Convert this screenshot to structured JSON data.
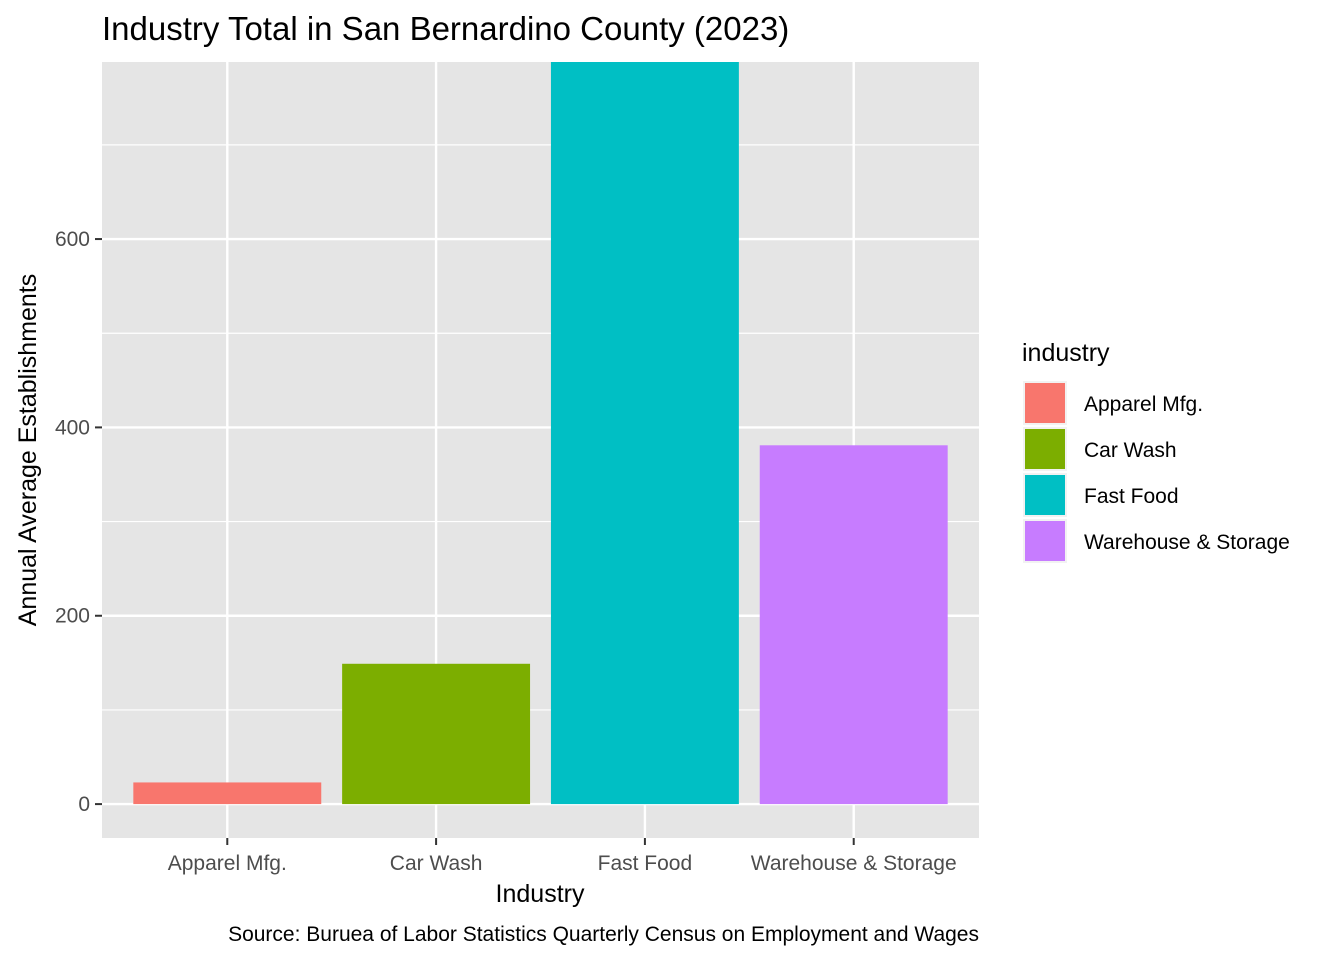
{
  "chart_data": {
    "type": "bar",
    "title": "Industry Total in San Bernardino County (2023)",
    "xlabel": "Industry",
    "ylabel": "Annual Average Establishments",
    "caption": "Source: Buruea of Labor Statistics Quarterly Census on Employment and Wages",
    "categories": [
      "Apparel Mfg.",
      "Car Wash",
      "Fast Food",
      "Warehouse & Storage"
    ],
    "values": [
      23,
      149,
      788,
      381
    ],
    "colors": [
      "#F8766D",
      "#7CAE00",
      "#00BFC4",
      "#C77CFF"
    ],
    "ylim": [
      -36,
      788
    ],
    "yticks": [
      0,
      200,
      400,
      600
    ],
    "grid": true,
    "panel_background": "#E5E5E5",
    "legend": {
      "title": "industry",
      "placement": "right",
      "items": [
        "Apparel Mfg.",
        "Car Wash",
        "Fast Food",
        "Warehouse & Storage"
      ]
    }
  }
}
